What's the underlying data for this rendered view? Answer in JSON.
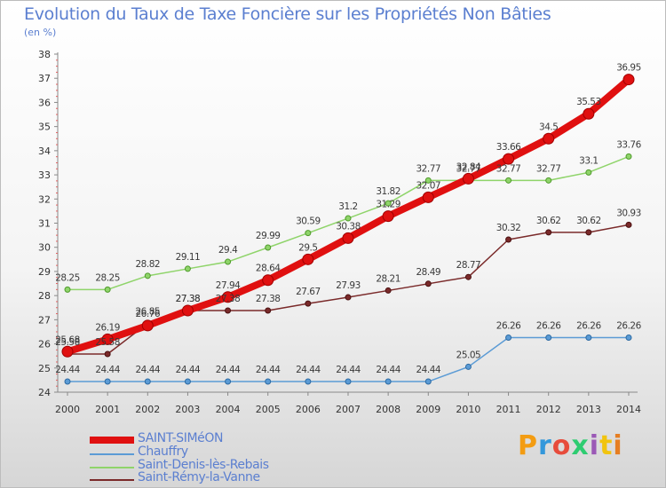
{
  "header": {
    "title": "Evolution du Taux de Taxe Foncière sur les Propriétés Non Bâties",
    "unit": "(en %)"
  },
  "logo": {
    "text": "Proxiti",
    "colors": [
      "#f39c12",
      "#3498db",
      "#e74c3c",
      "#2ecc71",
      "#9b59b6",
      "#f1c40f",
      "#e67e22"
    ]
  },
  "chart_data": {
    "type": "line",
    "x": [
      2000,
      2001,
      2002,
      2003,
      2004,
      2005,
      2006,
      2007,
      2008,
      2009,
      2010,
      2011,
      2012,
      2013,
      2014
    ],
    "ylim": [
      24,
      38
    ],
    "yticks": [
      24,
      25,
      26,
      27,
      28,
      29,
      30,
      31,
      32,
      33,
      34,
      35,
      36,
      37,
      38
    ],
    "grid": false,
    "legend_position": "bottom-left",
    "series": [
      {
        "name": "SAINT-SIMéON",
        "color": "#e01010",
        "values": [
          25.68,
          26.19,
          26.76,
          27.38,
          27.94,
          28.64,
          29.5,
          30.38,
          31.29,
          32.07,
          32.84,
          33.66,
          34.5,
          35.53,
          36.95
        ],
        "labels": [
          "25.68",
          "26.19",
          "26.76",
          "27.38",
          "27.94",
          "28.64",
          "29.5",
          "30.38",
          "31.29",
          "32.07",
          "32.84",
          "33.66",
          "34.5",
          "35.53",
          "36.95"
        ]
      },
      {
        "name": "Chauffry",
        "color": "#5b9bd5",
        "values": [
          24.44,
          24.44,
          24.44,
          24.44,
          24.44,
          24.44,
          24.44,
          24.44,
          24.44,
          24.44,
          25.05,
          26.26,
          26.26,
          26.26,
          26.26
        ],
        "labels": [
          "24.44",
          "24.44",
          "24.44",
          "24.44",
          "24.44",
          "24.44",
          "24.44",
          "24.44",
          "24.44",
          "24.44",
          "25.05",
          "26.26",
          "26.26",
          "26.26",
          "26.26"
        ]
      },
      {
        "name": "Saint-Denis-lès-Rebais",
        "color": "#8fd46a",
        "values": [
          28.25,
          28.25,
          28.82,
          29.11,
          29.4,
          29.99,
          30.59,
          31.2,
          31.82,
          32.77,
          32.77,
          32.77,
          32.77,
          33.1,
          33.76
        ],
        "labels": [
          "28.25",
          "28.25",
          "28.82",
          "29.11",
          "29.4",
          "29.99",
          "30.59",
          "31.2",
          "31.82",
          "32.77",
          "32.77",
          "32.77",
          "32.77",
          "33.1",
          "33.76"
        ]
      },
      {
        "name": "Saint-Rémy-la-Vanne",
        "color": "#7a2a2a",
        "values": [
          25.58,
          25.58,
          26.85,
          27.38,
          27.38,
          27.38,
          27.67,
          27.93,
          28.21,
          28.49,
          28.77,
          30.32,
          30.62,
          30.62,
          30.93
        ],
        "labels": [
          "25.58",
          "25.58",
          "26.85",
          "27.38",
          "27.38",
          "27.38",
          "27.67",
          "27.93",
          "28.21",
          "28.49",
          "28.77",
          "30.32",
          "30.62",
          "30.62",
          "30.93"
        ]
      }
    ]
  }
}
